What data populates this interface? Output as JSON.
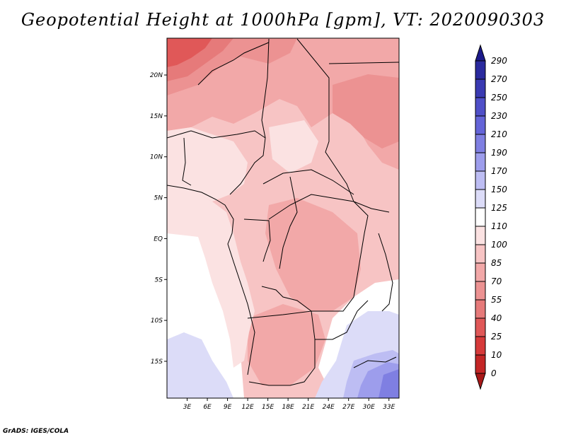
{
  "title": "Geopotential Height at 1000hPa [gpm], VT: 2020090303",
  "footer": "GrADS: IGES/COLA",
  "map": {
    "lat_labels": [
      "20N",
      "15N",
      "10N",
      "5N",
      "EQ",
      "5S",
      "10S",
      "15S"
    ],
    "lon_labels": [
      "3E",
      "6E",
      "9E",
      "12E",
      "15E",
      "18E",
      "21E",
      "24E",
      "27E",
      "30E",
      "33E"
    ],
    "lat_range": [
      -19.5,
      24.5
    ],
    "lon_range": [
      0,
      34.5
    ]
  },
  "colorbar": {
    "labels": [
      "290",
      "270",
      "250",
      "230",
      "210",
      "190",
      "170",
      "150",
      "125",
      "110",
      "100",
      "85",
      "70",
      "55",
      "40",
      "25",
      "10",
      "0"
    ],
    "colors": {
      "above_290": "#1c1a8a",
      "c270_290": "#2a2a9e",
      "c250_270": "#3a3ab2",
      "c230_250": "#4f4fc8",
      "c210_230": "#6464d8",
      "c190_210": "#7f7fe2",
      "c170_190": "#9d9dec",
      "c150_170": "#bdbdf3",
      "c125_150": "#dcdcf8",
      "c110_125": "#ffffff",
      "c100_110": "#fbe2e2",
      "c85_100": "#f7c4c4",
      "c70_85": "#f2a8a8",
      "c55_70": "#ec9292",
      "c40_55": "#e67a7a",
      "c25_40": "#e05858",
      "c10_25": "#d63a3a",
      "c0_10": "#c42626",
      "below_0": "#a81818"
    }
  }
}
